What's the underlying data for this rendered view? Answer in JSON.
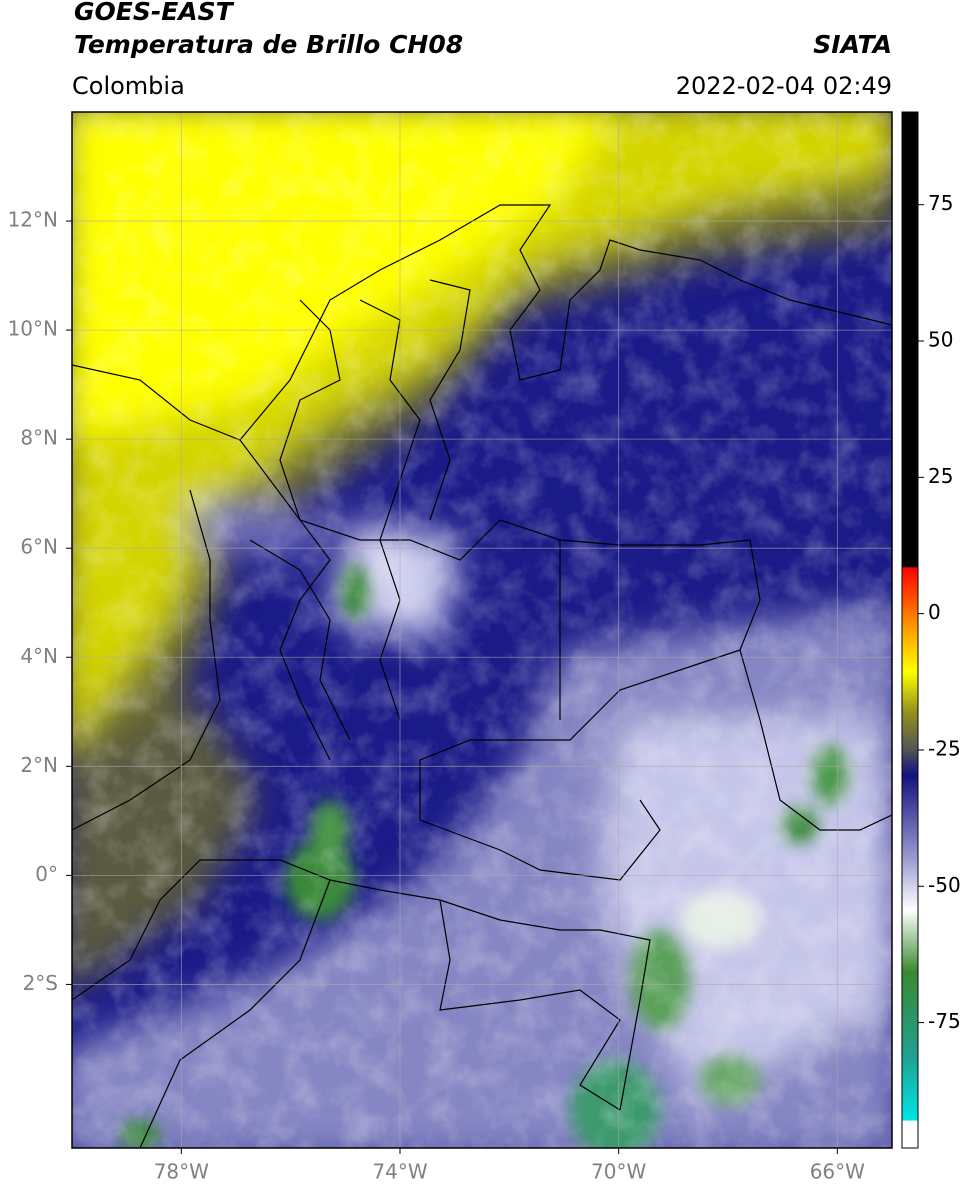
{
  "header": {
    "title": "GOES-EAST",
    "subtitle": "Temperatura de Brillo CH08",
    "source": "SIATA",
    "region": "Colombia",
    "datetime": "2022-02-04 02:49"
  },
  "map": {
    "xlim": [
      -80,
      -65
    ],
    "ylim": [
      -5,
      14
    ],
    "grid": true,
    "xticks": [
      {
        "value": -78,
        "label": "78°W"
      },
      {
        "value": -74,
        "label": "74°W"
      },
      {
        "value": -70,
        "label": "70°W"
      },
      {
        "value": -66,
        "label": "66°W"
      }
    ],
    "yticks": [
      {
        "value": -2,
        "label": "2°S"
      },
      {
        "value": 0,
        "label": "0°"
      },
      {
        "value": 2,
        "label": "2°N"
      },
      {
        "value": 4,
        "label": "4°N"
      },
      {
        "value": 6,
        "label": "6°N"
      },
      {
        "value": 8,
        "label": "8°N"
      },
      {
        "value": 10,
        "label": "10°N"
      },
      {
        "value": 12,
        "label": "12°N"
      }
    ]
  },
  "colorbar": {
    "lim": [
      -98,
      92
    ],
    "ticks": [
      -75,
      -50,
      -25,
      0,
      25,
      50,
      75
    ]
  }
}
